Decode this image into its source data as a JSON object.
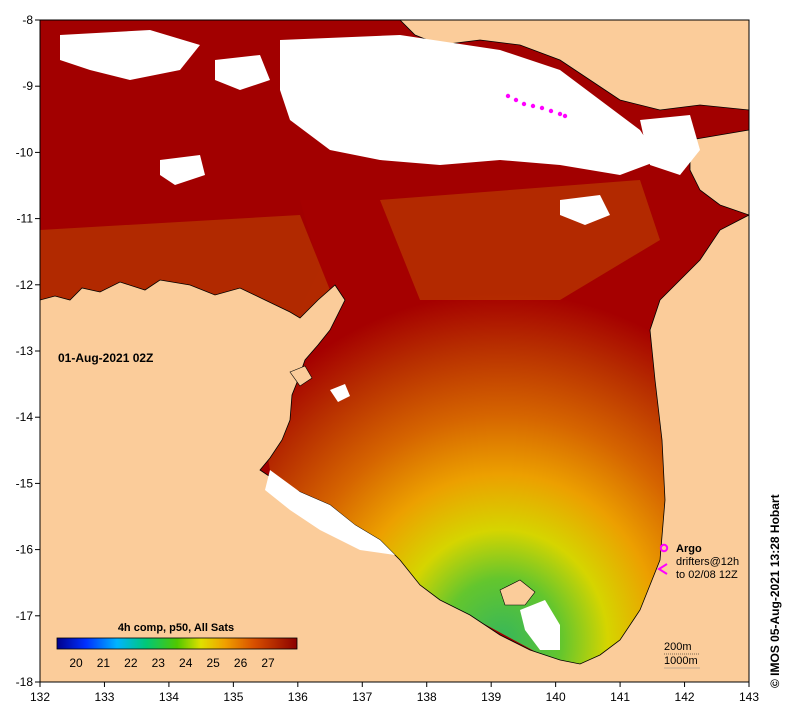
{
  "map": {
    "date_label": "01-Aug-2021 02Z",
    "x_axis": {
      "ticks": [
        "132",
        "133",
        "134",
        "135",
        "136",
        "137",
        "138",
        "139",
        "140",
        "141",
        "142",
        "143"
      ]
    },
    "y_axis": {
      "ticks": [
        "-8",
        "-9",
        "-10",
        "-11",
        "-12",
        "-13",
        "-14",
        "-15",
        "-16",
        "-17",
        "-18"
      ]
    },
    "colors": {
      "land": "#fbcc9a",
      "cloud": "#ffffff",
      "hot": "#a20000",
      "frame": "#000000"
    }
  },
  "colorbar": {
    "title": "4h comp, p50, All Sats",
    "labels": [
      "20",
      "21",
      "22",
      "23",
      "24",
      "25",
      "26",
      "27"
    ]
  },
  "legend": {
    "argo_label": "Argo",
    "drifters_line1": "drifters@12h",
    "drifters_line2": "to 02/08 12Z",
    "contour_200": "200m",
    "contour_1000": "1000m",
    "argo_color": "#ff00ff"
  },
  "credit": {
    "text": "© IMOS 05-Aug-2021 13:28 Hobart"
  }
}
